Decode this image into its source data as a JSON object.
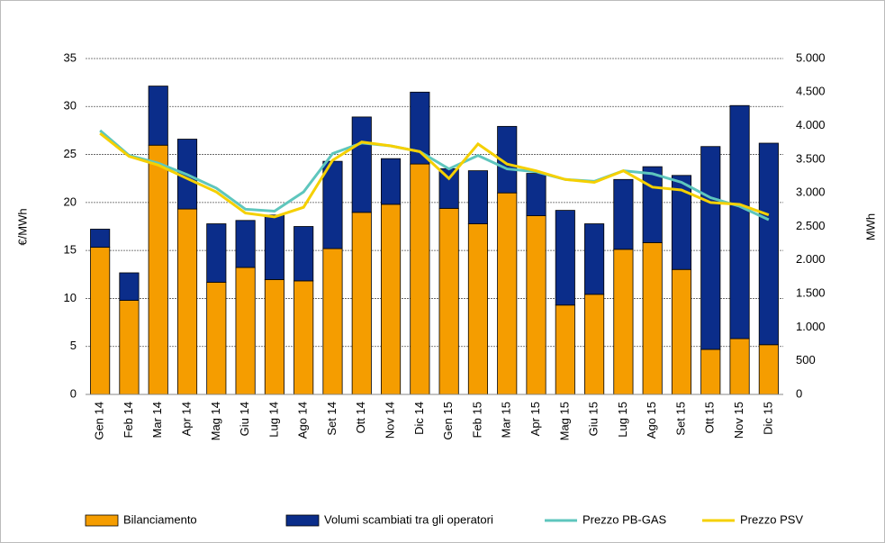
{
  "chart_data": {
    "type": "bar+line",
    "categories": [
      "Gen 14",
      "Feb 14",
      "Mar 14",
      "Apr 14",
      "Mag 14",
      "Giu 14",
      "Lug 14",
      "Ago 14",
      "Set 14",
      "Ott 14",
      "Nov 14",
      "Dic 14",
      "Gen 15",
      "Feb 15",
      "Mar 15",
      "Apr 15",
      "Mag 15",
      "Giu 15",
      "Lug 15",
      "Ago 15",
      "Set 15",
      "Ott 15",
      "Nov 15",
      "Dic 15"
    ],
    "ylabel": "€/MWh",
    "y2label": "MWh",
    "ylim": [
      0,
      35
    ],
    "yticks": [
      0,
      5,
      10,
      15,
      20,
      25,
      30,
      35
    ],
    "y2lim": [
      0,
      5000
    ],
    "y2ticks": [
      0,
      500,
      {
        "value": 1000,
        "label": "1.000"
      },
      {
        "value": 1500,
        "label": "1.500"
      },
      {
        "value": 2000,
        "label": "2.000"
      },
      {
        "value": 2500,
        "label": "2.500"
      },
      {
        "value": 3000,
        "label": "3.000"
      },
      {
        "value": 3500,
        "label": "3.500"
      },
      {
        "value": 4000,
        "label": "4.000"
      },
      {
        "value": 4500,
        "label": "4.500"
      },
      {
        "value": 5000,
        "label": "5.000"
      }
    ],
    "grid": true,
    "series": [
      {
        "name": "Bilanciamento",
        "type": "bar",
        "axis": "y2",
        "color": "#f59d00",
        "values": [
          2190,
          1400,
          3710,
          2760,
          1670,
          1890,
          1710,
          1690,
          2170,
          2710,
          2830,
          3430,
          2770,
          2540,
          3000,
          2660,
          1330,
          1490,
          2160,
          2260,
          1860,
          670,
          830,
          740
        ]
      },
      {
        "name": "Volumi scambiati tra gli operatori",
        "type": "bar",
        "axis": "y2",
        "color": "#0b2d8a",
        "values": [
          270,
          410,
          880,
          1040,
          870,
          700,
          960,
          810,
          1300,
          1420,
          680,
          1070,
          590,
          790,
          990,
          630,
          1410,
          1050,
          1040,
          1130,
          1400,
          3020,
          3470,
          3000
        ]
      },
      {
        "name": "Prezzo PB-GAS",
        "type": "line",
        "color": "#5ec6bd",
        "values": [
          27.5,
          24.9,
          24.1,
          22.9,
          21.5,
          19.3,
          19.1,
          21.1,
          25.1,
          26.2,
          25.9,
          25.3,
          23.5,
          24.9,
          23.5,
          23.2,
          22.4,
          22.2,
          23.3,
          23.0,
          22.1,
          20.5,
          19.6,
          18.2
        ]
      },
      {
        "name": "Prezzo PSV",
        "type": "line",
        "color": "#f5d000",
        "values": [
          27.2,
          24.8,
          23.9,
          22.5,
          21.1,
          18.9,
          18.5,
          19.5,
          24.4,
          26.3,
          25.9,
          25.3,
          22.5,
          26.1,
          24.0,
          23.3,
          22.4,
          22.1,
          23.3,
          21.6,
          21.3,
          20.0,
          19.8,
          18.7
        ]
      }
    ]
  }
}
